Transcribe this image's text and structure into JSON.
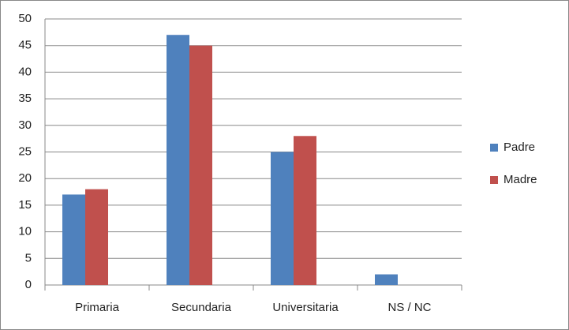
{
  "chart_data": {
    "type": "bar",
    "categories": [
      "Primaria",
      "Secundaria",
      "Universitaria",
      "NS / NC"
    ],
    "series": [
      {
        "name": "Padre",
        "color": "#4f81bd",
        "values": [
          17,
          47,
          25,
          2
        ]
      },
      {
        "name": "Madre",
        "color": "#c0504d",
        "values": [
          18,
          45,
          28,
          0
        ]
      }
    ],
    "ylim": [
      0,
      50
    ],
    "yticks": [
      0,
      5,
      10,
      15,
      20,
      25,
      30,
      35,
      40,
      45,
      50
    ],
    "grid": true,
    "legend": "right"
  }
}
